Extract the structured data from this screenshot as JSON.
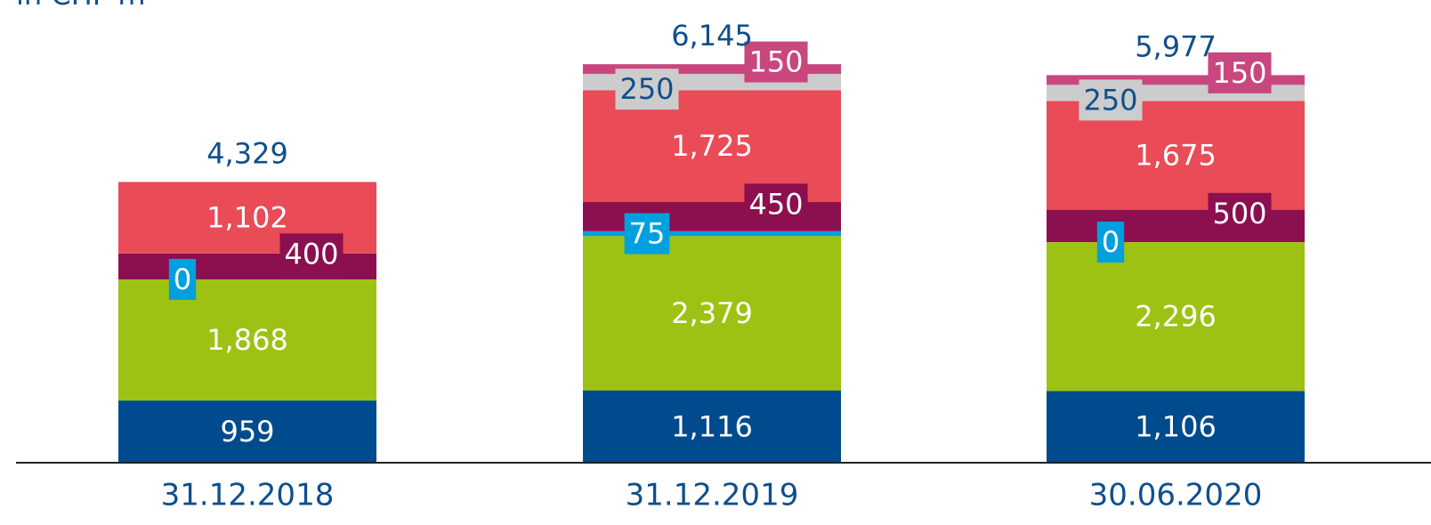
{
  "chart_data": {
    "type": "stacked_bar",
    "title": "in CHF m",
    "categories": [
      "31.12.2018",
      "31.12.2019",
      "30.06.2020"
    ],
    "totals": [
      4329,
      6145,
      5977
    ],
    "total_labels": [
      "4,329",
      "6,145",
      "5,977"
    ],
    "ylim": [
      0,
      6600
    ],
    "series": [
      {
        "color": "#004b8d",
        "values": [
          959,
          1116,
          1106
        ],
        "value_labels": [
          "959",
          "1,116",
          "1,106"
        ]
      },
      {
        "color": "#9dc213",
        "values": [
          1868,
          2379,
          2296
        ],
        "value_labels": [
          "1,868",
          "2,379",
          "2,296"
        ]
      },
      {
        "color": "#00a0df",
        "values": [
          0,
          75,
          0
        ]
      },
      {
        "color": "#8c0f4f",
        "values": [
          400,
          450,
          500
        ]
      },
      {
        "color": "#e94b57",
        "values": [
          1102,
          1725,
          1675
        ],
        "value_labels": [
          "1,102",
          "1,725",
          "1,675"
        ]
      },
      {
        "color": "#cccccc",
        "values": [
          null,
          250,
          250
        ]
      },
      {
        "color": "#c8477f",
        "values": [
          null,
          150,
          150
        ]
      }
    ]
  }
}
